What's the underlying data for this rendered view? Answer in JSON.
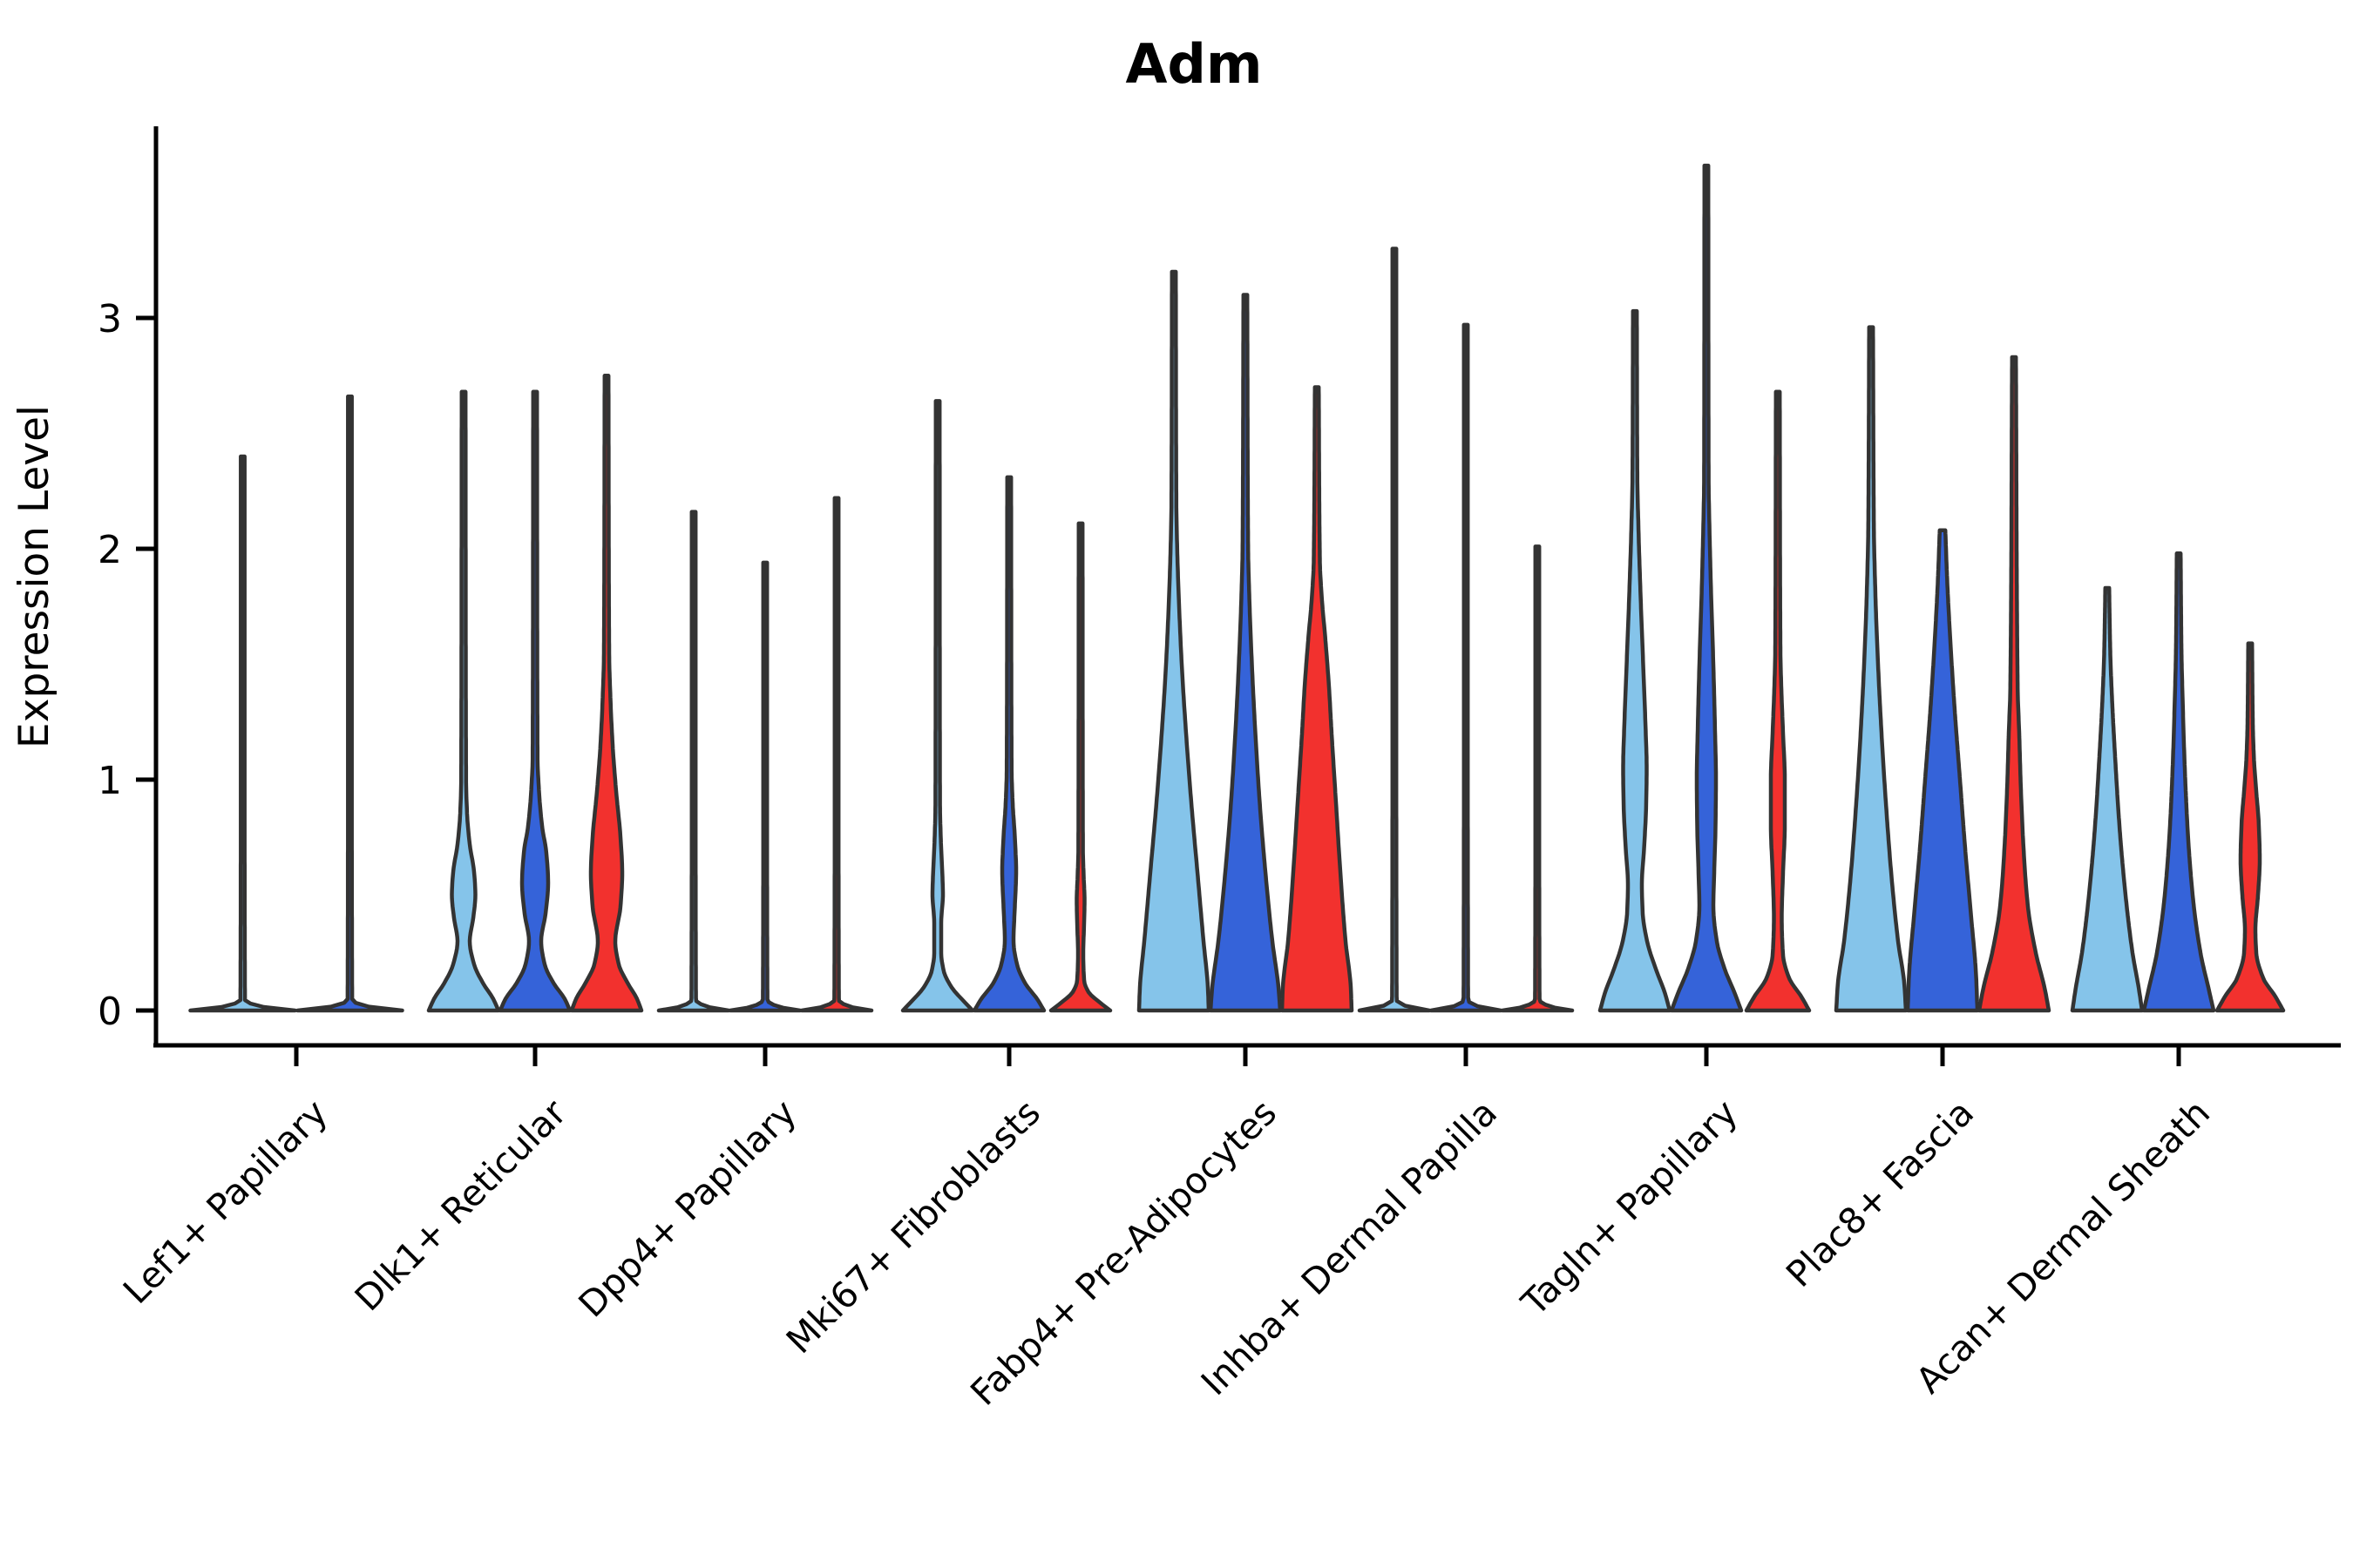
{
  "chart_data": {
    "type": "violin",
    "title": "Adm",
    "ylabel": "Expression Level",
    "xlabel": "",
    "ylim": [
      -0.15,
      3.83
    ],
    "yticks": [
      "0",
      "1",
      "2",
      "3"
    ],
    "grid": false,
    "legend": "none",
    "hue_colors": [
      "#85c4ea",
      "#3563d9",
      "#f2312e"
    ],
    "outline_color": "#333333",
    "categories": [
      "Lef1+ Papillary",
      "Dlk1+ Reticular",
      "Dpp4+ Papillary",
      "Mki67+ Fibroblasts",
      "Fabp4+ Pre-Adipocytes",
      "Inhba+ Dermal Papilla",
      "Tagln+ Papillary",
      "Plac8+ Fascia",
      "Acan+ Dermal Sheath"
    ],
    "violins": [
      [
        {
          "hue": 0,
          "max": 2.4,
          "flat": true,
          "profile": [
            [
              0,
              60
            ],
            [
              0.018,
              20
            ],
            [
              0.045,
              2.6
            ],
            [
              1.2,
              2.2
            ],
            [
              2.4,
              2.2
            ]
          ]
        },
        {
          "hue": 1,
          "max": 2.66,
          "flat": true,
          "profile": [
            [
              0,
              60
            ],
            [
              0.018,
              20
            ],
            [
              0.045,
              2.6
            ],
            [
              1.3,
              2.2
            ],
            [
              2.66,
              2.2
            ]
          ]
        }
      ],
      [
        {
          "hue": 0,
          "max": 2.68,
          "flat": false,
          "profile": [
            [
              0,
              40
            ],
            [
              0.05,
              34
            ],
            [
              0.12,
              22
            ],
            [
              0.2,
              12
            ],
            [
              0.3,
              7
            ],
            [
              0.4,
              11
            ],
            [
              0.5,
              13.5
            ],
            [
              0.6,
              12
            ],
            [
              0.72,
              7
            ],
            [
              0.85,
              4
            ],
            [
              1.0,
              2.8
            ],
            [
              2.68,
              2.2
            ]
          ]
        },
        {
          "hue": 1,
          "max": 2.68,
          "flat": false,
          "profile": [
            [
              0,
              40
            ],
            [
              0.05,
              34
            ],
            [
              0.12,
              21
            ],
            [
              0.2,
              11
            ],
            [
              0.3,
              7
            ],
            [
              0.42,
              12
            ],
            [
              0.55,
              15
            ],
            [
              0.68,
              13
            ],
            [
              0.8,
              8
            ],
            [
              0.95,
              4.5
            ],
            [
              1.1,
              2.8
            ],
            [
              2.68,
              2.2
            ]
          ]
        },
        {
          "hue": 2,
          "max": 2.75,
          "flat": false,
          "profile": [
            [
              0,
              40
            ],
            [
              0.05,
              35
            ],
            [
              0.12,
              24
            ],
            [
              0.2,
              14
            ],
            [
              0.3,
              10
            ],
            [
              0.45,
              16
            ],
            [
              0.6,
              18
            ],
            [
              0.75,
              16
            ],
            [
              0.95,
              11
            ],
            [
              1.15,
              7
            ],
            [
              1.35,
              4.5
            ],
            [
              1.55,
              3
            ],
            [
              2.75,
              2.2
            ]
          ]
        }
      ],
      [
        {
          "hue": 0,
          "max": 2.16,
          "flat": true,
          "profile": [
            [
              0,
              40
            ],
            [
              0.018,
              14
            ],
            [
              0.045,
              2.6
            ],
            [
              1.1,
              2.2
            ],
            [
              2.16,
              2.2
            ]
          ]
        },
        {
          "hue": 1,
          "max": 1.94,
          "flat": true,
          "profile": [
            [
              0,
              40
            ],
            [
              0.018,
              14
            ],
            [
              0.045,
              2.6
            ],
            [
              1.0,
              2.2
            ],
            [
              1.94,
              2.2
            ]
          ]
        },
        {
          "hue": 2,
          "max": 2.22,
          "flat": true,
          "profile": [
            [
              0,
              40
            ],
            [
              0.018,
              14
            ],
            [
              0.045,
              2.6
            ],
            [
              1.1,
              2.2
            ],
            [
              2.22,
              2.2
            ]
          ]
        }
      ],
      [
        {
          "hue": 0,
          "max": 2.64,
          "flat": false,
          "profile": [
            [
              0,
              40
            ],
            [
              0.04,
              30
            ],
            [
              0.1,
              16
            ],
            [
              0.17,
              7
            ],
            [
              0.25,
              4
            ],
            [
              0.38,
              4
            ],
            [
              0.5,
              6
            ],
            [
              0.62,
              5
            ],
            [
              0.75,
              3.5
            ],
            [
              0.9,
              2.6
            ],
            [
              2.64,
              2.2
            ]
          ]
        },
        {
          "hue": 1,
          "max": 2.31,
          "flat": false,
          "profile": [
            [
              0,
              40
            ],
            [
              0.05,
              32
            ],
            [
              0.12,
              18
            ],
            [
              0.2,
              9
            ],
            [
              0.3,
              5
            ],
            [
              0.45,
              6.5
            ],
            [
              0.6,
              8
            ],
            [
              0.75,
              6.5
            ],
            [
              0.9,
              4
            ],
            [
              1.05,
              2.8
            ],
            [
              2.31,
              2.2
            ]
          ]
        },
        {
          "hue": 2,
          "max": 2.11,
          "flat": false,
          "profile": [
            [
              0,
              34
            ],
            [
              0.035,
              22
            ],
            [
              0.08,
              9
            ],
            [
              0.13,
              4
            ],
            [
              0.25,
              3
            ],
            [
              0.38,
              4
            ],
            [
              0.48,
              4.5
            ],
            [
              0.58,
              3.5
            ],
            [
              0.7,
              2.6
            ],
            [
              2.11,
              2.2
            ]
          ]
        }
      ],
      [
        {
          "hue": 0,
          "max": 3.2,
          "flat": false,
          "profile": [
            [
              0,
              40
            ],
            [
              0.1,
              39
            ],
            [
              0.3,
              34
            ],
            [
              0.6,
              27
            ],
            [
              0.9,
              20
            ],
            [
              1.2,
              14
            ],
            [
              1.5,
              9
            ],
            [
              1.8,
              5.5
            ],
            [
              2.0,
              3.8
            ],
            [
              2.2,
              2.8
            ],
            [
              3.2,
              2.2
            ]
          ]
        },
        {
          "hue": 1,
          "max": 3.1,
          "flat": false,
          "profile": [
            [
              0,
              40
            ],
            [
              0.1,
              38
            ],
            [
              0.3,
              31
            ],
            [
              0.6,
              23
            ],
            [
              0.9,
              16.5
            ],
            [
              1.2,
              11.5
            ],
            [
              1.5,
              7.5
            ],
            [
              1.8,
              4.5
            ],
            [
              2.0,
              3.2
            ],
            [
              3.1,
              2.2
            ]
          ]
        },
        {
          "hue": 2,
          "max": 2.7,
          "flat": false,
          "profile": [
            [
              0,
              40
            ],
            [
              0.1,
              39
            ],
            [
              0.3,
              33
            ],
            [
              0.6,
              27
            ],
            [
              0.9,
              22
            ],
            [
              1.2,
              17
            ],
            [
              1.4,
              14
            ],
            [
              1.6,
              10
            ],
            [
              1.8,
              5.5
            ],
            [
              1.95,
              3.5
            ],
            [
              2.7,
              2.2
            ]
          ]
        }
      ],
      [
        {
          "hue": 0,
          "max": 3.3,
          "flat": true,
          "profile": [
            [
              0,
              40
            ],
            [
              0.018,
              14
            ],
            [
              0.045,
              2.6
            ],
            [
              1.6,
              2.2
            ],
            [
              3.3,
              2.2
            ]
          ]
        },
        {
          "hue": 1,
          "max": 2.97,
          "flat": true,
          "profile": [
            [
              0,
              40
            ],
            [
              0.018,
              14
            ],
            [
              0.045,
              2.6
            ],
            [
              1.5,
              2.2
            ],
            [
              2.97,
              2.2
            ]
          ]
        },
        {
          "hue": 2,
          "max": 2.01,
          "flat": true,
          "profile": [
            [
              0,
              40
            ],
            [
              0.018,
              14
            ],
            [
              0.045,
              2.6
            ],
            [
              1.0,
              2.2
            ],
            [
              2.01,
              2.2
            ]
          ]
        }
      ],
      [
        {
          "hue": 0,
          "max": 3.03,
          "flat": false,
          "profile": [
            [
              0,
              40
            ],
            [
              0.08,
              34
            ],
            [
              0.18,
              24
            ],
            [
              0.3,
              14
            ],
            [
              0.42,
              9
            ],
            [
              0.55,
              8
            ],
            [
              0.7,
              10.5
            ],
            [
              0.9,
              13
            ],
            [
              1.05,
              13.5
            ],
            [
              1.25,
              12
            ],
            [
              1.5,
              9.5
            ],
            [
              1.8,
              6.5
            ],
            [
              2.1,
              4
            ],
            [
              2.3,
              2.8
            ],
            [
              3.03,
              2.2
            ]
          ]
        },
        {
          "hue": 1,
          "max": 3.66,
          "flat": false,
          "profile": [
            [
              0,
              40
            ],
            [
              0.08,
              32
            ],
            [
              0.18,
              21
            ],
            [
              0.3,
              12
            ],
            [
              0.45,
              8
            ],
            [
              0.6,
              9
            ],
            [
              0.8,
              10.5
            ],
            [
              1.0,
              11
            ],
            [
              1.2,
              10
            ],
            [
              1.5,
              8
            ],
            [
              1.8,
              5.5
            ],
            [
              2.1,
              3.5
            ],
            [
              2.3,
              2.6
            ],
            [
              3.66,
              2.2
            ]
          ]
        },
        {
          "hue": 2,
          "max": 2.68,
          "flat": false,
          "profile": [
            [
              0,
              36
            ],
            [
              0.06,
              27
            ],
            [
              0.14,
              13
            ],
            [
              0.24,
              6
            ],
            [
              0.4,
              4.5
            ],
            [
              0.6,
              6
            ],
            [
              0.8,
              8
            ],
            [
              1.0,
              8
            ],
            [
              1.2,
              6
            ],
            [
              1.4,
              4
            ],
            [
              1.55,
              3
            ],
            [
              2.68,
              2.2
            ]
          ]
        }
      ],
      [
        {
          "hue": 0,
          "max": 2.96,
          "flat": false,
          "profile": [
            [
              0,
              40
            ],
            [
              0.12,
              38
            ],
            [
              0.3,
              31
            ],
            [
              0.6,
              23
            ],
            [
              0.9,
              17
            ],
            [
              1.2,
              12
            ],
            [
              1.5,
              8
            ],
            [
              1.8,
              5
            ],
            [
              2.1,
              3.2
            ],
            [
              2.96,
              2.2
            ]
          ]
        },
        {
          "hue": 1,
          "max": 2.08,
          "flat": false,
          "profile": [
            [
              0,
              40
            ],
            [
              0.15,
              38.5
            ],
            [
              0.4,
              33
            ],
            [
              0.7,
              26
            ],
            [
              1.0,
              20
            ],
            [
              1.3,
              14
            ],
            [
              1.6,
              9
            ],
            [
              1.85,
              5.5
            ],
            [
              2.08,
              3.2
            ]
          ]
        },
        {
          "hue": 2,
          "max": 2.83,
          "flat": false,
          "profile": [
            [
              0,
              40
            ],
            [
              0.1,
              35
            ],
            [
              0.25,
              25
            ],
            [
              0.45,
              16
            ],
            [
              0.7,
              11
            ],
            [
              0.95,
              8
            ],
            [
              1.2,
              6
            ],
            [
              1.4,
              4.2
            ],
            [
              2.83,
              2.2
            ]
          ]
        }
      ],
      [
        {
          "hue": 0,
          "max": 1.83,
          "flat": false,
          "profile": [
            [
              0,
              40
            ],
            [
              0.1,
              36
            ],
            [
              0.25,
              29
            ],
            [
              0.5,
              21
            ],
            [
              0.8,
              14
            ],
            [
              1.1,
              9
            ],
            [
              1.35,
              5.5
            ],
            [
              1.55,
              3.5
            ],
            [
              1.83,
              2.2
            ]
          ]
        },
        {
          "hue": 1,
          "max": 1.98,
          "flat": false,
          "profile": [
            [
              0,
              40
            ],
            [
              0.1,
              34
            ],
            [
              0.25,
              25
            ],
            [
              0.5,
              16
            ],
            [
              0.8,
              10
            ],
            [
              1.1,
              6.5
            ],
            [
              1.35,
              4.5
            ],
            [
              1.55,
              3.2
            ],
            [
              1.98,
              2.2
            ]
          ]
        },
        {
          "hue": 2,
          "max": 1.59,
          "flat": false,
          "profile": [
            [
              0,
              38
            ],
            [
              0.06,
              29
            ],
            [
              0.14,
              15
            ],
            [
              0.25,
              7
            ],
            [
              0.35,
              6
            ],
            [
              0.5,
              9
            ],
            [
              0.65,
              11
            ],
            [
              0.8,
              10
            ],
            [
              0.95,
              7
            ],
            [
              1.1,
              4.2
            ],
            [
              1.25,
              3
            ],
            [
              1.59,
              2.2
            ]
          ]
        }
      ]
    ]
  }
}
